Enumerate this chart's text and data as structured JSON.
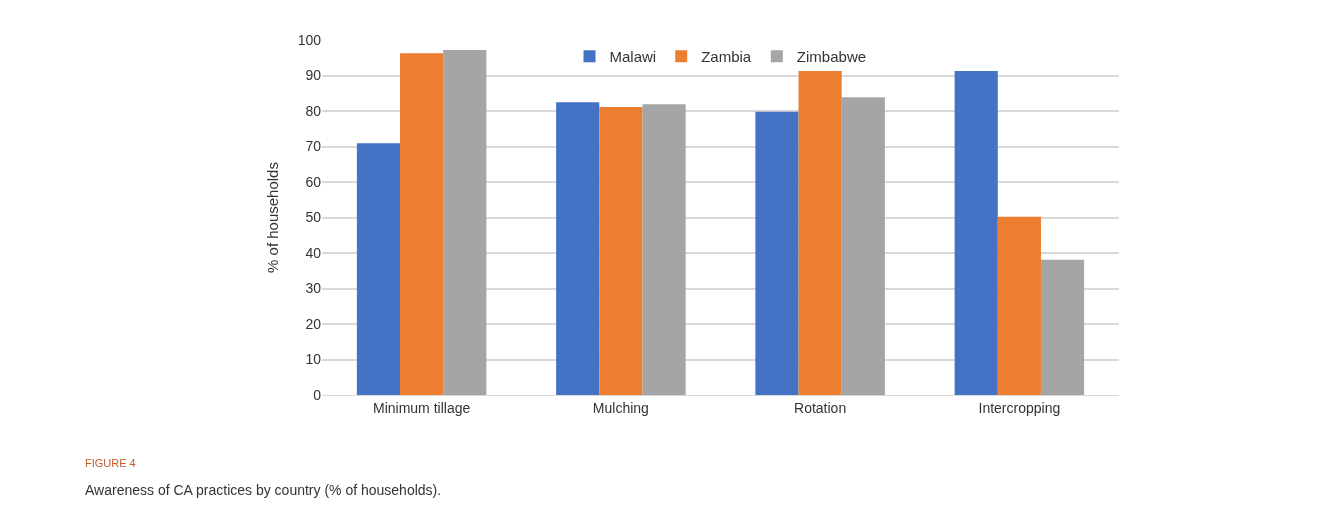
{
  "chart_data": {
    "type": "bar",
    "categories": [
      "Minimum tillage",
      "Mulching",
      "Rotation",
      "Intercropping"
    ],
    "series": [
      {
        "name": "Malawi",
        "color": "#4472c4",
        "values": [
          70.9,
          82.5,
          79.8,
          91.3
        ]
      },
      {
        "name": "Zambia",
        "color": "#ed7d31",
        "values": [
          96.3,
          81.1,
          91.3,
          50.2
        ]
      },
      {
        "name": "Zimbabwe",
        "color": "#a5a5a5",
        "values": [
          97.2,
          81.9,
          83.9,
          38.1
        ]
      }
    ],
    "ylabel": "% of households",
    "ylim": [
      0,
      100
    ],
    "yticks": [
      0,
      10,
      20,
      30,
      40,
      50,
      60,
      70,
      80,
      90,
      100
    ],
    "grid": "y",
    "legend": "top",
    "annotations": [
      "FIGURE 4",
      "Awareness of CA practices by country (% of households)."
    ]
  }
}
